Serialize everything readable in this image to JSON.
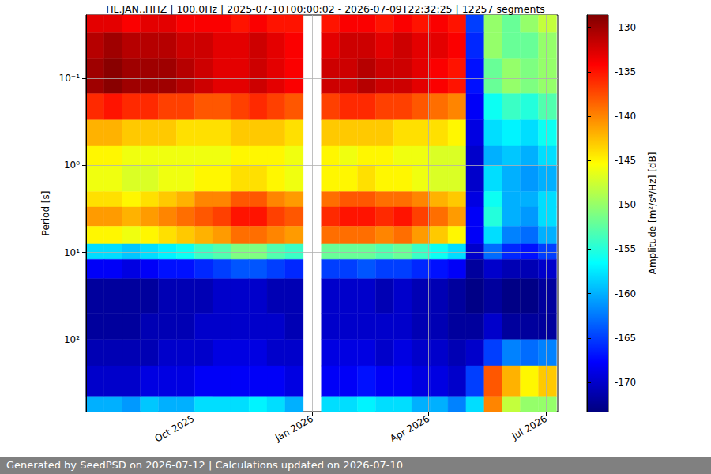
{
  "chart_data": {
    "type": "heatmap",
    "title": "HL.JAN..HHZ | 100.0Hz | 2025-07-10T00:00:02 - 2026-07-09T22:32:25 | 12257 segments",
    "y_label": "Period [s]",
    "log": "y",
    "grid": true,
    "xlim": [
      "2025-07-10T00:00:02",
      "2026-07-09T22:32:25"
    ],
    "xticks": [
      {
        "value": "2025-10-01",
        "label": "Oct 2025"
      },
      {
        "value": "2026-01-01",
        "label": "Jan 2026"
      },
      {
        "value": "2026-04-01",
        "label": "Apr 2026"
      },
      {
        "value": "2026-07-01",
        "label": "Jul 2026"
      }
    ],
    "ylim": [
      0.0187,
      672
    ],
    "yticks": [
      {
        "value": 0.1,
        "label": "10⁻¹"
      },
      {
        "value": 1,
        "label": "10⁰"
      },
      {
        "value": 10,
        "label": "10¹"
      },
      {
        "value": 100,
        "label": "10²"
      }
    ],
    "x_edges": [
      "2025-07-10",
      "2025-07-24",
      "2025-08-07",
      "2025-08-21",
      "2025-09-04",
      "2025-09-18",
      "2025-10-02",
      "2025-10-16",
      "2025-10-30",
      "2025-11-13",
      "2025-11-27",
      "2025-12-11",
      "2025-12-25",
      "2026-01-08",
      "2026-01-22",
      "2026-02-05",
      "2026-02-19",
      "2026-03-05",
      "2026-03-19",
      "2026-04-02",
      "2026-04-16",
      "2026-04-30",
      "2026-05-14",
      "2026-05-28",
      "2026-06-11",
      "2026-06-25",
      "2026-07-09"
    ],
    "y_edges": [
      0.0187,
      0.03,
      0.06,
      0.15,
      0.3,
      0.6,
      1,
      2,
      3,
      5,
      8,
      12,
      20,
      50,
      100,
      200,
      450,
      672
    ],
    "z": [
      [
        -133,
        -133,
        -134,
        -133,
        -133,
        -134,
        -134,
        -134,
        -135,
        -134,
        -135,
        -135,
        null,
        -135,
        -134,
        -134,
        -135,
        -134,
        -135,
        -134,
        -135,
        -165,
        -150,
        -152,
        -150,
        -148
      ],
      [
        -131,
        -130,
        -131,
        -131,
        -131,
        -132,
        -132,
        -133,
        -133,
        -132,
        -133,
        -134,
        null,
        -133,
        -132,
        -132,
        -133,
        -132,
        -133,
        -133,
        -134,
        -166,
        -150,
        -152,
        -152,
        -150
      ],
      [
        -130,
        -129,
        -130,
        -130,
        -130,
        -131,
        -132,
        -133,
        -133,
        -132,
        -133,
        -134,
        null,
        -132,
        -132,
        -131,
        -132,
        -132,
        -133,
        -134,
        -135,
        -167,
        -152,
        -150,
        -151,
        -150
      ],
      [
        -136,
        -135,
        -136,
        -136,
        -137,
        -137,
        -138,
        -138,
        -137,
        -136,
        -137,
        -138,
        null,
        -137,
        -136,
        -136,
        -137,
        -137,
        -138,
        -139,
        -140,
        -168,
        -156,
        -154,
        -155,
        -153
      ],
      [
        -142,
        -142,
        -143,
        -143,
        -143,
        -144,
        -144,
        -144,
        -143,
        -143,
        -143,
        -144,
        null,
        -143,
        -143,
        -143,
        -143,
        -144,
        -144,
        -144,
        -145,
        -169,
        -158,
        -157,
        -158,
        -156
      ],
      [
        -145,
        -145,
        -146,
        -146,
        -146,
        -146,
        -146,
        -146,
        -145,
        -145,
        -145,
        -146,
        null,
        -145,
        -146,
        -145,
        -145,
        -146,
        -146,
        -147,
        -147,
        -170,
        -160,
        -159,
        -160,
        -158
      ],
      [
        -146,
        -146,
        -147,
        -147,
        -146,
        -146,
        -145,
        -145,
        -144,
        -144,
        -145,
        -146,
        null,
        -145,
        -145,
        -144,
        -145,
        -145,
        -146,
        -147,
        -147,
        -170,
        -158,
        -160,
        -161,
        -160
      ],
      [
        -144,
        -144,
        -145,
        -144,
        -143,
        -142,
        -140,
        -140,
        -138,
        -138,
        -140,
        -141,
        null,
        -139,
        -138,
        -138,
        -139,
        -139,
        -140,
        -142,
        -143,
        -169,
        -156,
        -160,
        -160,
        -158
      ],
      [
        -141,
        -141,
        -142,
        -141,
        -140,
        -139,
        -138,
        -137,
        -135,
        -135,
        -137,
        -138,
        null,
        -136,
        -135,
        -135,
        -136,
        -135,
        -137,
        -139,
        -141,
        -168,
        -155,
        -160,
        -161,
        -158
      ],
      [
        -145,
        -145,
        -146,
        -145,
        -144,
        -143,
        -142,
        -141,
        -139,
        -139,
        -140,
        -141,
        null,
        -139,
        -139,
        -139,
        -140,
        -139,
        -141,
        -143,
        -145,
        -168,
        -158,
        -162,
        -163,
        -160
      ],
      [
        -158,
        -158,
        -159,
        -158,
        -157,
        -156,
        -154,
        -153,
        -151,
        -151,
        -153,
        -154,
        null,
        -152,
        -152,
        -152,
        -153,
        -152,
        -154,
        -156,
        -158,
        -170,
        -163,
        -166,
        -167,
        -165
      ],
      [
        -168,
        -168,
        -169,
        -168,
        -167,
        -167,
        -166,
        -165,
        -164,
        -164,
        -165,
        -166,
        null,
        -165,
        -165,
        -164,
        -165,
        -165,
        -166,
        -167,
        -168,
        -172,
        -170,
        -171,
        -171,
        -170
      ],
      [
        -172,
        -172,
        -172,
        -172,
        -171,
        -171,
        -171,
        -170,
        -170,
        -170,
        -171,
        -171,
        null,
        -170,
        -170,
        -170,
        -171,
        -170,
        -171,
        -171,
        -172,
        -173,
        -172,
        -173,
        -173,
        -172
      ],
      [
        -172,
        -172,
        -172,
        -171,
        -171,
        -171,
        -170,
        -170,
        -170,
        -170,
        -170,
        -171,
        null,
        -170,
        -170,
        -170,
        -170,
        -170,
        -171,
        -171,
        -172,
        -172,
        -170,
        -172,
        -172,
        -172
      ],
      [
        -171,
        -171,
        -171,
        -171,
        -170,
        -170,
        -170,
        -169,
        -169,
        -169,
        -170,
        -170,
        null,
        -169,
        -169,
        -169,
        -170,
        -169,
        -170,
        -170,
        -171,
        -170,
        -165,
        -162,
        -163,
        -162
      ],
      [
        -170,
        -170,
        -170,
        -169,
        -169,
        -169,
        -168,
        -168,
        -168,
        -168,
        -168,
        -169,
        null,
        -168,
        -168,
        -167,
        -168,
        -168,
        -169,
        -169,
        -170,
        -165,
        -138,
        -142,
        -145,
        -143
      ],
      [
        -160,
        -160,
        -161,
        -159,
        -160,
        -160,
        -158,
        -158,
        -158,
        -157,
        -158,
        -160,
        null,
        -158,
        -158,
        -157,
        -158,
        -158,
        -160,
        -160,
        -162,
        -158,
        -140,
        -148,
        -150,
        -150
      ]
    ],
    "colorbar": {
      "label": "Amplitude [m²/s⁴/Hz] [dB]",
      "range": [
        -173.3,
        -128.6
      ],
      "ticks": [
        -130,
        -135,
        -140,
        -145,
        -150,
        -155,
        -160,
        -165,
        -170
      ]
    },
    "annotations": [
      "Generated by SeedPSD on 2026-07-12 | Calculations updated on 2026-07-10"
    ]
  }
}
